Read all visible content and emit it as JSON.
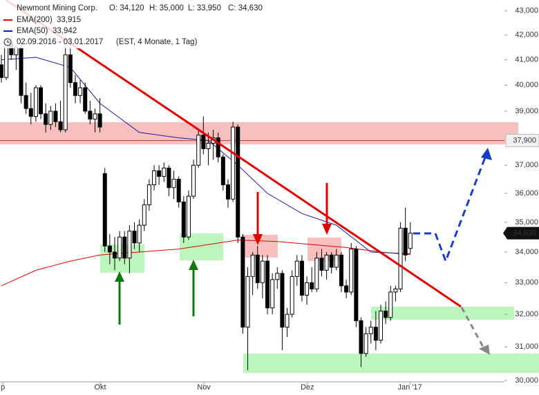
{
  "chart_data": {
    "type": "candlestick",
    "title": "Newmont Mining Corp.",
    "ohlc_header": [
      "O: 34,120",
      "H: 35,000",
      "L: 33,950",
      "C: 34,630"
    ],
    "period": "02.09.2016 - 03.01.2017",
    "period_note": "(EST, 4 Monate, 1 Tag)",
    "log_scale": true,
    "ylim": [
      29580,
      43460
    ],
    "yticks": [
      {
        "value": 30000,
        "label": "30,000"
      },
      {
        "value": 31000,
        "label": "31,000"
      },
      {
        "value": 32000,
        "label": "32,000"
      },
      {
        "value": 33000,
        "label": "33,000"
      },
      {
        "value": 34000,
        "label": "34,000"
      },
      {
        "value": 35000,
        "label": "35,000"
      },
      {
        "value": 36000,
        "label": "36,000"
      },
      {
        "value": 37000,
        "label": "37,000"
      },
      {
        "value": 39000,
        "label": "39,000"
      },
      {
        "value": 40000,
        "label": "40,000"
      },
      {
        "value": 41000,
        "label": "41,000"
      },
      {
        "value": 42000,
        "label": "42,000"
      },
      {
        "value": 43000,
        "label": "43,000"
      }
    ],
    "xticks": [
      {
        "value": 0.3,
        "label": "p"
      },
      {
        "value": 20.05,
        "label": "Okt"
      },
      {
        "value": 41.1,
        "label": "Nov"
      },
      {
        "value": 62.1,
        "label": "Dez"
      },
      {
        "value": 82.9,
        "label": "Jan '17"
      }
    ],
    "up_color": "#ffffff",
    "down_color": "#000000",
    "ohlc": [
      [
        40800,
        41200,
        40100,
        40300
      ],
      [
        40300,
        41900,
        40200,
        41700
      ],
      [
        41700,
        42000,
        41000,
        41200
      ],
      [
        41200,
        41600,
        40600,
        41500
      ],
      [
        41500,
        41700,
        39300,
        39600
      ],
      [
        39600,
        40100,
        38900,
        39100
      ],
      [
        39100,
        39700,
        38500,
        38800
      ],
      [
        38800,
        40000,
        38600,
        39900
      ],
      [
        39900,
        40000,
        38700,
        38900
      ],
      [
        38900,
        39300,
        38200,
        38500
      ],
      [
        38500,
        39200,
        38300,
        39000
      ],
      [
        39000,
        39300,
        38400,
        38600
      ],
      [
        38600,
        39400,
        38200,
        38300
      ],
      [
        38300,
        41700,
        38200,
        41200
      ],
      [
        41200,
        41900,
        39900,
        40100
      ],
      [
        40100,
        40400,
        39300,
        39600
      ],
      [
        39600,
        40200,
        39300,
        39900
      ],
      [
        39900,
        40100,
        38900,
        39000
      ],
      [
        39000,
        39400,
        38500,
        38700
      ],
      [
        38700,
        39100,
        38200,
        38900
      ],
      [
        38900,
        39500,
        38200,
        38400
      ],
      [
        36700,
        36900,
        34000,
        34200
      ],
      [
        34200,
        34600,
        33600,
        34000
      ],
      [
        34000,
        34500,
        33400,
        33800
      ],
      [
        33800,
        34700,
        33700,
        34500
      ],
      [
        34500,
        34700,
        33600,
        33800
      ],
      [
        33800,
        34900,
        33300,
        34700
      ],
      [
        34700,
        35000,
        34100,
        34300
      ],
      [
        34300,
        35100,
        34000,
        34900
      ],
      [
        34900,
        35800,
        34700,
        35600
      ],
      [
        35600,
        36500,
        35400,
        36300
      ],
      [
        36300,
        37000,
        36100,
        36800
      ],
      [
        36800,
        37000,
        36300,
        36600
      ],
      [
        36600,
        37100,
        36400,
        36900
      ],
      [
        36900,
        37000,
        35900,
        36200
      ],
      [
        36200,
        36800,
        35800,
        36500
      ],
      [
        36500,
        36600,
        35500,
        35700
      ],
      [
        35700,
        35900,
        34300,
        34500
      ],
      [
        34500,
        36100,
        34400,
        35900
      ],
      [
        35900,
        37200,
        35800,
        37000
      ],
      [
        37000,
        38300,
        36900,
        38100
      ],
      [
        38100,
        38800,
        37400,
        37600
      ],
      [
        37600,
        38200,
        37000,
        37800
      ],
      [
        37800,
        38300,
        37200,
        38000
      ],
      [
        38000,
        38200,
        37100,
        37300
      ],
      [
        37300,
        37400,
        36100,
        36300
      ],
      [
        36300,
        36500,
        35500,
        35800
      ],
      [
        35800,
        38600,
        35700,
        38400
      ],
      [
        38400,
        38500,
        34300,
        34500
      ],
      [
        34500,
        34600,
        31400,
        31600
      ],
      [
        31600,
        33500,
        30300,
        33200
      ],
      [
        33200,
        34000,
        32600,
        33900
      ],
      [
        33900,
        34200,
        32800,
        33000
      ],
      [
        33000,
        33900,
        32500,
        33700
      ],
      [
        33700,
        33900,
        32000,
        32200
      ],
      [
        32200,
        33300,
        32000,
        33100
      ],
      [
        33100,
        33500,
        32800,
        33300
      ],
      [
        33300,
        33400,
        30900,
        31600
      ],
      [
        31600,
        32200,
        31300,
        32000
      ],
      [
        32000,
        33400,
        31900,
        33200
      ],
      [
        33200,
        33900,
        32900,
        33700
      ],
      [
        33700,
        33900,
        32400,
        32600
      ],
      [
        32600,
        33200,
        32300,
        33000
      ],
      [
        33000,
        33500,
        32700,
        32800
      ],
      [
        32800,
        34000,
        32700,
        33800
      ],
      [
        33800,
        34100,
        33200,
        33400
      ],
      [
        33400,
        34000,
        33100,
        33900
      ],
      [
        33900,
        34000,
        33300,
        33500
      ],
      [
        33500,
        34100,
        33400,
        33900
      ],
      [
        33900,
        34000,
        32700,
        32900
      ],
      [
        32900,
        33100,
        32500,
        32700
      ],
      [
        32700,
        34300,
        32600,
        34100
      ],
      [
        34100,
        34200,
        31600,
        31800
      ],
      [
        31800,
        31900,
        30400,
        30800
      ],
      [
        30800,
        31600,
        30700,
        31400
      ],
      [
        31400,
        31800,
        31100,
        31600
      ],
      [
        31600,
        32100,
        30900,
        31200
      ],
      [
        31200,
        32300,
        31100,
        32100
      ],
      [
        32100,
        32400,
        31700,
        31900
      ],
      [
        31900,
        32900,
        31800,
        32700
      ],
      [
        32700,
        32900,
        32400,
        32800
      ],
      [
        32800,
        35000,
        32700,
        34800
      ],
      [
        34800,
        35500,
        33700,
        33900
      ],
      [
        34120,
        35000,
        33950,
        34630
      ]
    ],
    "series": [
      {
        "name": "EMA(200)",
        "value_label": "33,915",
        "color": "#e00000",
        "x": [
          0,
          7,
          14,
          20,
          28,
          36,
          42,
          48,
          56,
          63,
          70,
          77,
          83
        ],
        "values": [
          32900,
          33400,
          33700,
          33900,
          34000,
          34100,
          34250,
          34400,
          34350,
          34250,
          34150,
          34000,
          33915
        ]
      },
      {
        "name": "EMA(50)",
        "value_label": "33,942",
        "color": "#1a1aa0",
        "x": [
          0,
          7,
          14,
          20,
          28,
          36,
          42,
          48,
          54,
          61,
          68,
          75,
          83
        ],
        "values": [
          41000,
          41100,
          40700,
          39300,
          38200,
          38000,
          37900,
          37000,
          36000,
          35300,
          34900,
          34000,
          33942
        ]
      }
    ],
    "level_line": {
      "value": 37900,
      "label": "37,900"
    },
    "last_price": {
      "value": 34630,
      "label": "34,630"
    }
  }
}
